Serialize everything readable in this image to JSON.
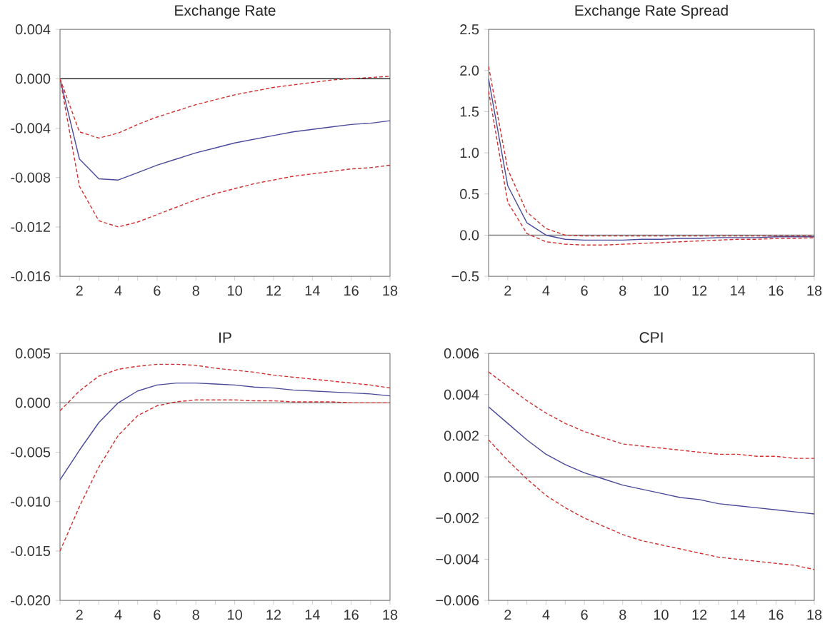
{
  "chart_data": [
    {
      "type": "line",
      "title": "Exchange Rate",
      "xlim": [
        1,
        18
      ],
      "x": [
        1,
        2,
        3,
        4,
        5,
        6,
        7,
        8,
        9,
        10,
        11,
        12,
        13,
        14,
        15,
        16,
        17,
        18
      ],
      "xticks": [
        {
          "value": 1,
          "label": null
        },
        2,
        {
          "value": 3,
          "label": null
        },
        4,
        {
          "value": 5,
          "label": null
        },
        6,
        {
          "value": 7,
          "label": null
        },
        8,
        {
          "value": 9,
          "label": null
        },
        10,
        {
          "value": 11,
          "label": null
        },
        12,
        {
          "value": 13,
          "label": null
        },
        14,
        {
          "value": 15,
          "label": null
        },
        16,
        {
          "value": 17,
          "label": null
        },
        18
      ],
      "ylim": [
        -0.016,
        0.004
      ],
      "yticks": [
        {
          "value": -0.016,
          "label": "-0.016"
        },
        {
          "value": -0.012,
          "label": "-0.012"
        },
        {
          "value": -0.008,
          "label": "-0.008"
        },
        {
          "value": -0.004,
          "label": "-0.004"
        },
        {
          "value": 0,
          "label": "0.000"
        },
        {
          "value": 0.004,
          "label": "0.004"
        }
      ],
      "ref_lines": [
        {
          "axis": "y",
          "value": 0,
          "color": "#000000"
        }
      ],
      "series": [
        {
          "color": "#4a4a9a",
          "line_style": "solid",
          "values": [
            0,
            -0.0065,
            -0.0081,
            -0.0082,
            -0.0076,
            -0.007,
            -0.0065,
            -0.006,
            -0.0056,
            -0.0052,
            -0.0049,
            -0.0046,
            -0.0043,
            -0.0041,
            -0.0039,
            -0.0037,
            -0.0036,
            -0.0034
          ]
        },
        {
          "color": "#d03030",
          "line_style": "dashed",
          "values": [
            0,
            -0.0043,
            -0.0048,
            -0.0044,
            -0.0037,
            -0.0031,
            -0.0026,
            -0.0021,
            -0.0017,
            -0.0013,
            -0.001,
            -0.0007,
            -0.0005,
            -0.0003,
            -0.0001,
            0.0,
            0.0001,
            0.0002
          ]
        },
        {
          "color": "#d03030",
          "line_style": "dashed",
          "values": [
            0,
            -0.0087,
            -0.0115,
            -0.012,
            -0.0116,
            -0.011,
            -0.0104,
            -0.0098,
            -0.0093,
            -0.0089,
            -0.0085,
            -0.0082,
            -0.0079,
            -0.0077,
            -0.0075,
            -0.0073,
            -0.0072,
            -0.007
          ]
        }
      ]
    },
    {
      "type": "line",
      "title": "Exchange Rate Spread",
      "xlim": [
        1,
        18
      ],
      "x": [
        1,
        2,
        3,
        4,
        5,
        6,
        7,
        8,
        9,
        10,
        11,
        12,
        13,
        14,
        15,
        16,
        17,
        18
      ],
      "xticks": [
        {
          "value": 1,
          "label": null
        },
        2,
        {
          "value": 3,
          "label": null
        },
        4,
        {
          "value": 5,
          "label": null
        },
        6,
        {
          "value": 7,
          "label": null
        },
        8,
        {
          "value": 9,
          "label": null
        },
        10,
        {
          "value": 11,
          "label": null
        },
        12,
        {
          "value": 13,
          "label": null
        },
        14,
        {
          "value": 15,
          "label": null
        },
        16,
        {
          "value": 17,
          "label": null
        },
        18
      ],
      "ylim": [
        -0.5,
        2.5
      ],
      "yticks": [
        {
          "value": -0.5,
          "label": "−0.5"
        },
        {
          "value": 0,
          "label": "0.0"
        },
        0.5,
        {
          "value": 1,
          "label": "1.0"
        },
        1.5,
        {
          "value": 2,
          "label": "2.0"
        },
        2.5
      ],
      "ref_lines": [
        {
          "axis": "y",
          "value": 0,
          "color": "#808080"
        }
      ],
      "series": [
        {
          "color": "#4a4a9a",
          "line_style": "solid",
          "values": [
            1.9,
            0.6,
            0.15,
            0.0,
            -0.05,
            -0.06,
            -0.06,
            -0.06,
            -0.05,
            -0.05,
            -0.04,
            -0.04,
            -0.03,
            -0.03,
            -0.03,
            -0.02,
            -0.02,
            -0.02
          ]
        },
        {
          "color": "#d03030",
          "line_style": "dashed",
          "values": [
            2.05,
            0.8,
            0.28,
            0.08,
            0.0,
            -0.01,
            -0.01,
            -0.01,
            -0.01,
            -0.01,
            -0.01,
            -0.01,
            -0.01,
            -0.01,
            -0.01,
            -0.01,
            -0.01,
            -0.01
          ]
        },
        {
          "color": "#d03030",
          "line_style": "dashed",
          "values": [
            1.75,
            0.4,
            0.02,
            -0.08,
            -0.11,
            -0.12,
            -0.12,
            -0.11,
            -0.1,
            -0.09,
            -0.08,
            -0.07,
            -0.06,
            -0.05,
            -0.05,
            -0.04,
            -0.04,
            -0.03
          ]
        }
      ]
    },
    {
      "type": "line",
      "title": "IP",
      "xlim": [
        1,
        18
      ],
      "x": [
        1,
        2,
        3,
        4,
        5,
        6,
        7,
        8,
        9,
        10,
        11,
        12,
        13,
        14,
        15,
        16,
        17,
        18
      ],
      "xticks": [
        {
          "value": 1,
          "label": null
        },
        2,
        {
          "value": 3,
          "label": null
        },
        4,
        {
          "value": 5,
          "label": null
        },
        6,
        {
          "value": 7,
          "label": null
        },
        8,
        {
          "value": 9,
          "label": null
        },
        10,
        {
          "value": 11,
          "label": null
        },
        12,
        {
          "value": 13,
          "label": null
        },
        14,
        {
          "value": 15,
          "label": null
        },
        16,
        {
          "value": 17,
          "label": null
        },
        18
      ],
      "ylim": [
        -0.02,
        0.005
      ],
      "yticks": [
        {
          "value": -0.02,
          "label": "-0.020"
        },
        {
          "value": -0.015,
          "label": "-0.015"
        },
        {
          "value": -0.01,
          "label": "-0.010"
        },
        {
          "value": -0.005,
          "label": "-0.005"
        },
        {
          "value": 0,
          "label": "0.000"
        },
        0.005
      ],
      "ref_lines": [
        {
          "axis": "y",
          "value": 0,
          "color": "#808080"
        }
      ],
      "series": [
        {
          "color": "#4a4a9a",
          "line_style": "solid",
          "values": [
            -0.0078,
            -0.0048,
            -0.002,
            0.0,
            0.0012,
            0.0018,
            0.002,
            0.002,
            0.0019,
            0.0018,
            0.0016,
            0.0015,
            0.0013,
            0.0012,
            0.0011,
            0.001,
            0.0009,
            0.0007
          ]
        },
        {
          "color": "#d03030",
          "line_style": "dashed",
          "values": [
            -0.0008,
            0.0012,
            0.0027,
            0.0034,
            0.0037,
            0.0039,
            0.0039,
            0.0038,
            0.0035,
            0.0033,
            0.0031,
            0.0028,
            0.0026,
            0.0024,
            0.0022,
            0.002,
            0.0018,
            0.0015
          ]
        },
        {
          "color": "#d03030",
          "line_style": "dashed",
          "values": [
            -0.015,
            -0.0105,
            -0.0065,
            -0.0033,
            -0.0013,
            -0.0003,
            0.0001,
            0.0003,
            0.0003,
            0.0003,
            0.0002,
            0.0002,
            0.0001,
            0.0001,
            0.0001,
            0.0,
            0.0,
            0.0
          ]
        }
      ]
    },
    {
      "type": "line",
      "title": "CPI",
      "xlim": [
        1,
        18
      ],
      "x": [
        1,
        2,
        3,
        4,
        5,
        6,
        7,
        8,
        9,
        10,
        11,
        12,
        13,
        14,
        15,
        16,
        17,
        18
      ],
      "xticks": [
        {
          "value": 1,
          "label": null
        },
        2,
        {
          "value": 3,
          "label": null
        },
        4,
        {
          "value": 5,
          "label": null
        },
        6,
        {
          "value": 7,
          "label": null
        },
        8,
        {
          "value": 9,
          "label": null
        },
        10,
        {
          "value": 11,
          "label": null
        },
        12,
        {
          "value": 13,
          "label": null
        },
        14,
        {
          "value": 15,
          "label": null
        },
        16,
        {
          "value": 17,
          "label": null
        },
        18
      ],
      "ylim": [
        -0.006,
        0.006
      ],
      "yticks": [
        {
          "value": -0.006,
          "label": "−0.006"
        },
        {
          "value": -0.004,
          "label": "−0.004"
        },
        {
          "value": -0.002,
          "label": "−0.002"
        },
        {
          "value": 0,
          "label": "0.000"
        },
        0.002,
        0.004,
        0.006
      ],
      "ref_lines": [
        {
          "axis": "y",
          "value": 0,
          "color": "#808080"
        }
      ],
      "series": [
        {
          "color": "#4a4a9a",
          "line_style": "solid",
          "values": [
            0.0034,
            0.0026,
            0.0018,
            0.0011,
            0.0006,
            0.0002,
            -0.0001,
            -0.0004,
            -0.0006,
            -0.0008,
            -0.001,
            -0.0011,
            -0.0013,
            -0.0014,
            -0.0015,
            -0.0016,
            -0.0017,
            -0.0018
          ]
        },
        {
          "color": "#d03030",
          "line_style": "dashed",
          "values": [
            0.0051,
            0.0044,
            0.0037,
            0.0031,
            0.0026,
            0.0022,
            0.0019,
            0.0016,
            0.0015,
            0.0014,
            0.0013,
            0.0012,
            0.0011,
            0.0011,
            0.001,
            0.001,
            0.0009,
            0.0009
          ]
        },
        {
          "color": "#d03030",
          "line_style": "dashed",
          "values": [
            0.0018,
            0.0008,
            -0.0001,
            -0.0009,
            -0.0015,
            -0.002,
            -0.0024,
            -0.0028,
            -0.0031,
            -0.0033,
            -0.0035,
            -0.0037,
            -0.0039,
            -0.004,
            -0.0041,
            -0.0042,
            -0.0043,
            -0.0045
          ]
        }
      ]
    }
  ]
}
